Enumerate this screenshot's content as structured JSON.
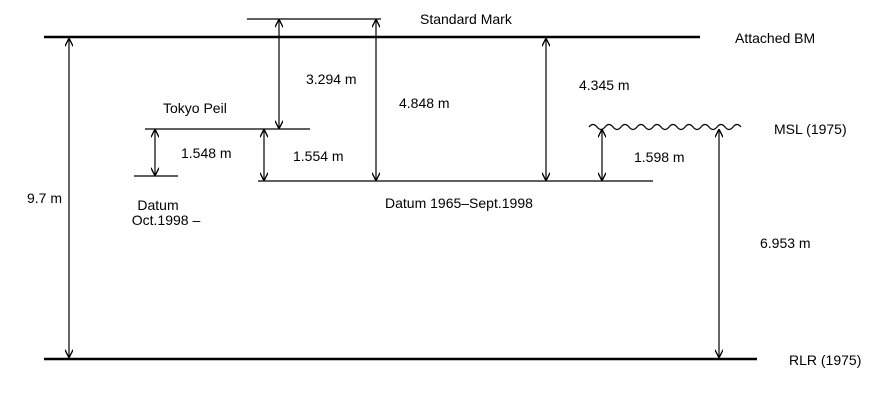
{
  "labels": {
    "standard_mark": "Standard Mark",
    "attached_bm": "Attached BM",
    "tokyo_peil": "Tokyo Peil",
    "msl": "MSL (1975)",
    "datum_new_line1": "Datum",
    "datum_new_line2": "Oct.1998 –",
    "datum_old": "Datum 1965–Sept.1998",
    "rlr": "RLR (1975)"
  },
  "measurements": {
    "bm_to_rlr": "9.7 m",
    "mark_to_tokyo_peil": "3.294 m",
    "mark_to_datum_old": "4.848 m",
    "bm_to_datum_old": "4.345 m",
    "tokyo_peil_to_datum_new": "1.548 m",
    "tokyo_peil_to_datum_old": "1.554 m",
    "msl_to_datum_old": "1.598 m",
    "msl_to_rlr": "6.953 m"
  }
}
